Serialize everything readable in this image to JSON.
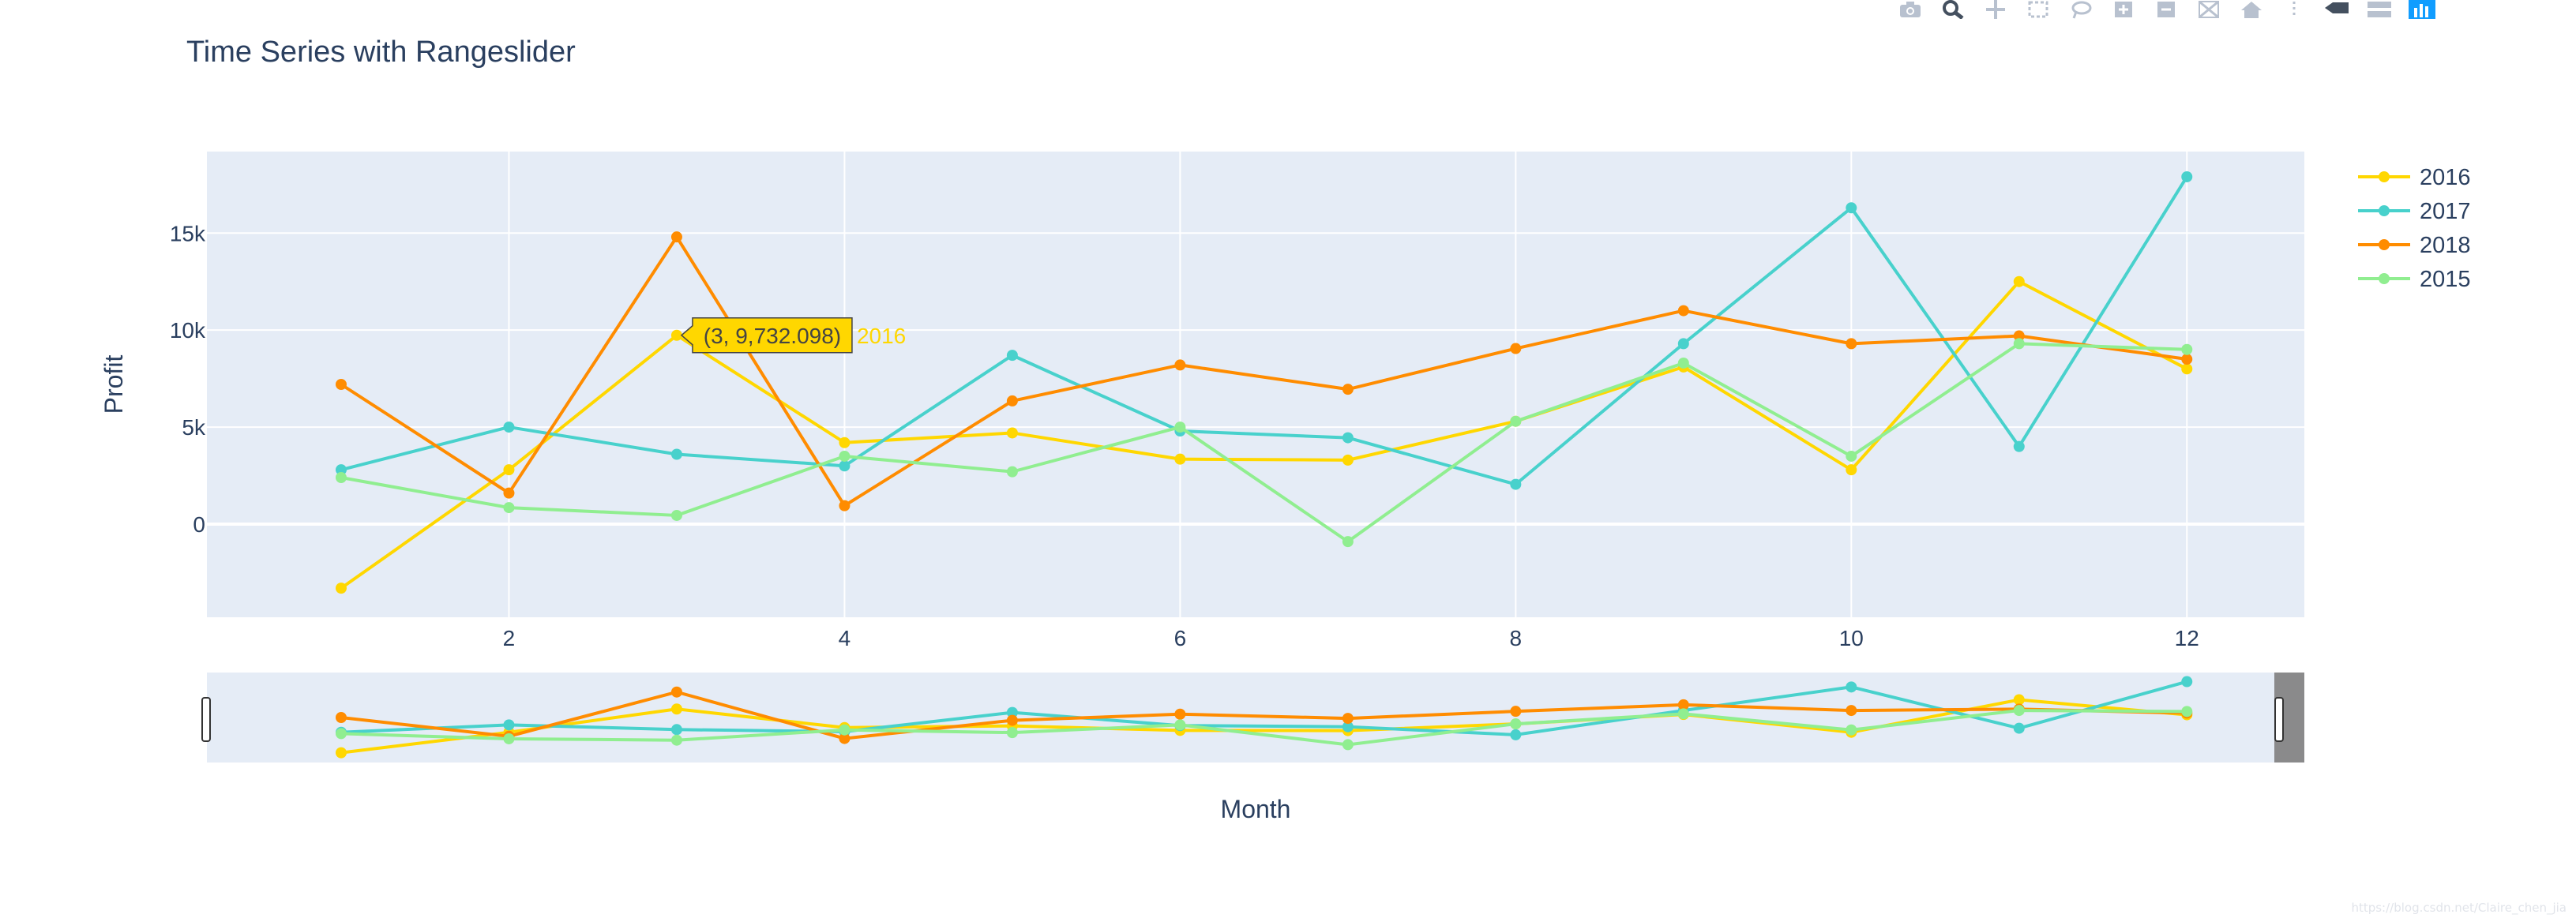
{
  "chart_data": {
    "type": "line",
    "title": "Time Series with Rangeslider",
    "xlabel": "Month",
    "ylabel": "Profit",
    "x": [
      1,
      2,
      3,
      4,
      5,
      6,
      7,
      8,
      9,
      10,
      11,
      12
    ],
    "xlim": [
      0.2,
      12.7
    ],
    "ylim": [
      -4800,
      19200
    ],
    "x_ticks": [
      2,
      4,
      6,
      8,
      10,
      12
    ],
    "x_tick_labels": [
      "2",
      "4",
      "6",
      "8",
      "10",
      "12"
    ],
    "y_ticks": [
      0,
      5000,
      10000,
      15000
    ],
    "y_tick_labels": [
      "0",
      "5k",
      "10k",
      "15k"
    ],
    "grid": true,
    "legend_position": "top-right",
    "series": [
      {
        "name": "2016",
        "color": "#FFD700",
        "values": [
          -3300,
          2800,
          9732.098,
          4200,
          4700,
          3350,
          3300,
          5300,
          8100,
          2800,
          12500,
          8000
        ]
      },
      {
        "name": "2017",
        "color": "#48D1CC",
        "values": [
          2800,
          5000,
          3600,
          3000,
          8700,
          4800,
          4450,
          2050,
          9300,
          16300,
          4000,
          17900
        ]
      },
      {
        "name": "2018",
        "color": "#FF8C00",
        "values": [
          7200,
          1600,
          14800,
          950,
          6350,
          8200,
          6950,
          9050,
          11000,
          9300,
          9700,
          8500
        ]
      },
      {
        "name": "2015",
        "color": "#90EE90",
        "values": [
          2400,
          850,
          450,
          3500,
          2700,
          5000,
          -900,
          5300,
          8300,
          3500,
          9300,
          9000
        ]
      }
    ],
    "hover": {
      "text": "(3, 9,732.098)",
      "series_name": "2016",
      "color": "#FFD700"
    },
    "rangeslider": {
      "visible": true,
      "selected_upto_fraction": 0.986
    }
  },
  "modebar_icons": [
    "camera-icon",
    "zoom-icon",
    "pan-icon",
    "box-select-icon",
    "lasso-icon",
    "zoom-in-icon",
    "zoom-out-icon",
    "autoscale-icon",
    "reset-axes-icon",
    "toggle-spikelines-icon",
    "hover-closest-icon",
    "hover-compare-icon",
    "plotly-logo-icon"
  ],
  "watermark": "https://blog.csdn.net/Claire_chen_jia"
}
